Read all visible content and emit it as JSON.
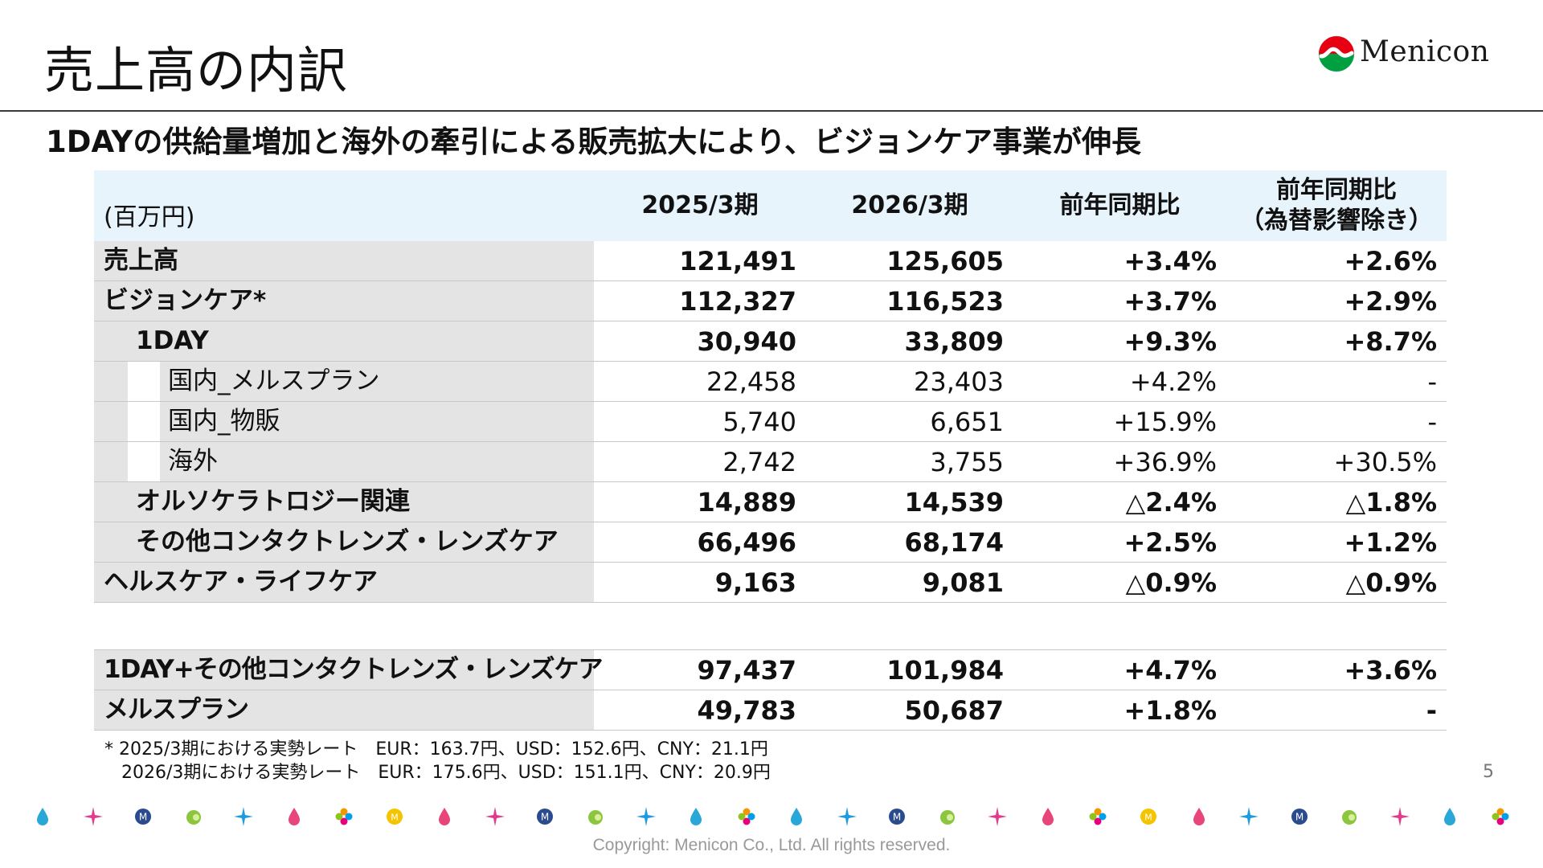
{
  "page_title": "売上高の内訳",
  "subtitle": "1DAYの供給量増加と海外の牽引による販売拡大により、ビジョンケア事業が伸長",
  "logo": {
    "text": "Menicon",
    "icon": "menicon-logo-icon"
  },
  "table": {
    "unit": "(百万円)",
    "headers": [
      "2025/3期",
      "2026/3期",
      "前年同期比",
      "前年同期比\n（為替影響除き）"
    ],
    "rows": [
      {
        "label": "売上高",
        "v1": "121,491",
        "v2": "125,605",
        "yoy": "+3.4%",
        "yoy_fx": "+2.6%"
      },
      {
        "label": "ビジョンケア*",
        "v1": "112,327",
        "v2": "116,523",
        "yoy": "+3.7%",
        "yoy_fx": "+2.9%"
      },
      {
        "label": "1DAY",
        "v1": "30,940",
        "v2": "33,809",
        "yoy": "+9.3%",
        "yoy_fx": "+8.7%"
      },
      {
        "label": "国内_メルスプラン",
        "v1": "22,458",
        "v2": "23,403",
        "yoy": "+4.2%",
        "yoy_fx": "-"
      },
      {
        "label": "国内_物販",
        "v1": "5,740",
        "v2": "6,651",
        "yoy": "+15.9%",
        "yoy_fx": "-"
      },
      {
        "label": "海外",
        "v1": "2,742",
        "v2": "3,755",
        "yoy": "+36.9%",
        "yoy_fx": "+30.5%"
      },
      {
        "label": "オルソケラトロジー関連",
        "v1": "14,889",
        "v2": "14,539",
        "yoy": "△2.4%",
        "yoy_fx": "△1.8%"
      },
      {
        "label": "その他コンタクトレンズ・レンズケア",
        "v1": "66,496",
        "v2": "68,174",
        "yoy": "+2.5%",
        "yoy_fx": "+1.2%"
      },
      {
        "label": "ヘルスケア・ライフケア",
        "v1": "9,163",
        "v2": "9,081",
        "yoy": "△0.9%",
        "yoy_fx": "△0.9%"
      }
    ],
    "extra_rows": [
      {
        "label": "1DAY+その他コンタクトレンズ・レンズケア",
        "v1": "97,437",
        "v2": "101,984",
        "yoy": "+4.7%",
        "yoy_fx": "+3.6%"
      },
      {
        "label": "メルスプラン",
        "v1": "49,783",
        "v2": "50,687",
        "yoy": "+1.8%",
        "yoy_fx": "-"
      }
    ]
  },
  "footnote": "* 2025/3期における実勢レート　EUR：163.7円、USD：152.6円、CNY：21.1円\n   2026/3期における実勢レート　EUR：175.6円、USD：151.1円、CNY：20.9円",
  "page_number": "5",
  "copyright": "Copyright: Menicon Co., Ltd. All rights reserved.",
  "decoration_icons": [
    "drop-icon",
    "sparkle-icon",
    "m-badge-icon",
    "leaf-icon",
    "sparkle-icon",
    "drop-icon",
    "flower-icon",
    "coin-icon",
    "drop-icon",
    "sparkle-icon",
    "m-badge-icon",
    "leaf-icon",
    "sparkle-icon",
    "drop-icon",
    "flower-icon",
    "drop-icon",
    "sparkle-icon",
    "m-badge-icon",
    "leaf-icon",
    "sparkle-icon",
    "drop-icon",
    "flower-icon",
    "coin-icon",
    "drop-icon",
    "sparkle-icon",
    "m-badge-icon",
    "leaf-icon",
    "sparkle-icon",
    "drop-icon",
    "flower-icon"
  ],
  "colors": {
    "header_bg": "#e8f4fb",
    "label_bg": "#e4e4e4",
    "accent_red": "#e60012",
    "accent_green": "#00a040"
  }
}
